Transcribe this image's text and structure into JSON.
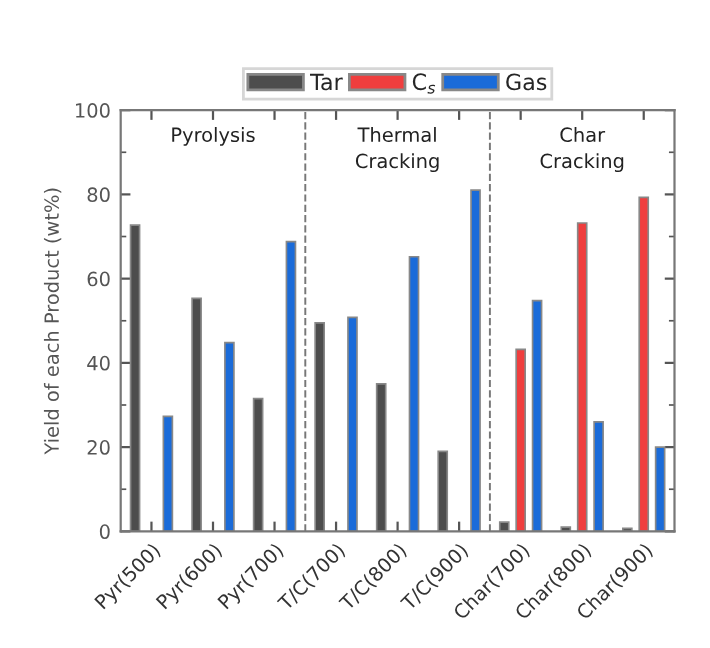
{
  "chart_data": {
    "type": "bar",
    "ylabel": "Yield of each Product (wt%)",
    "categories": [
      "Pyr(500)",
      "Pyr(600)",
      "Pyr(700)",
      "T/C(700)",
      "T/C(800)",
      "T/C(900)",
      "Char(700)",
      "Char(800)",
      "Char(900)"
    ],
    "series": [
      {
        "name": "Tar",
        "color": "#4d4d4d",
        "values": [
          72.7,
          55.3,
          31.5,
          49.5,
          35,
          19,
          2.2,
          1,
          0.7
        ]
      },
      {
        "name": "C$_{s}$",
        "color": "#ef3e3e",
        "values": [
          null,
          null,
          null,
          null,
          null,
          null,
          43.2,
          73.2,
          79.3
        ]
      },
      {
        "name": "Gas",
        "color": "#1a6bd9",
        "values": [
          27.3,
          44.8,
          68.8,
          50.8,
          65.2,
          81,
          54.8,
          26,
          20
        ]
      }
    ],
    "ylim": [
      0,
      100
    ],
    "yticks": [
      0,
      20,
      40,
      60,
      80,
      100
    ],
    "grid": false,
    "legend": "top",
    "annotations": [
      "Pyrolysis",
      "Thermal\nCracking",
      "Char\nCracking"
    ]
  }
}
